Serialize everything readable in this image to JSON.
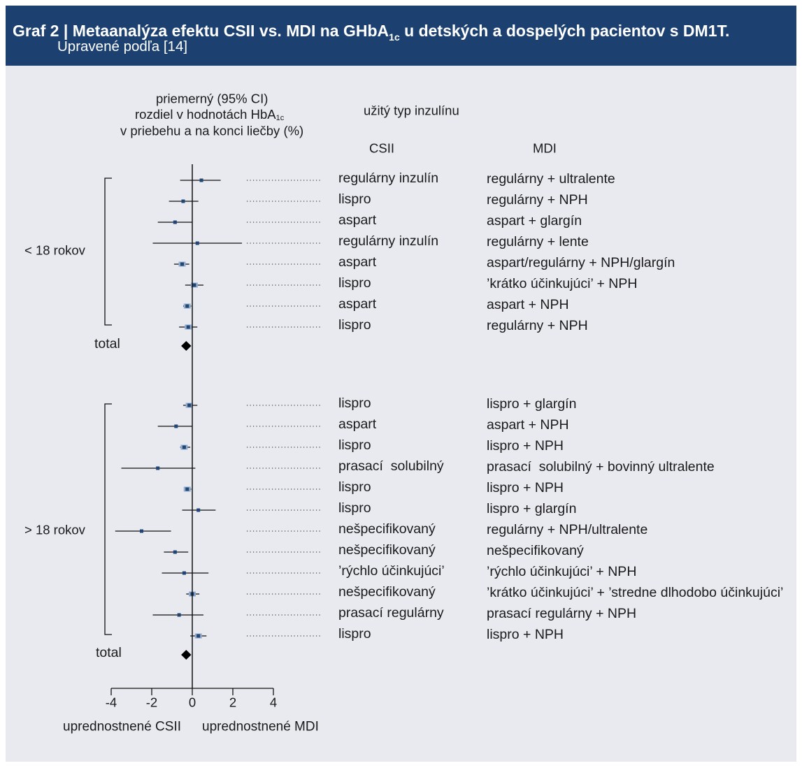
{
  "header": {
    "title_main": "Graf 2 | Metaanalýza efektu CSII vs. MDI na GHbA",
    "title_sub": "1c",
    "title_end": " u detských a dospelých pacientov s DM1T.",
    "subtitle": "Upravené podľa [14]"
  },
  "colors": {
    "header_bg": "#1c4171",
    "panel_bg": "#e8eaf0",
    "box_dark": "#1f4677",
    "box_light": "#93abcb"
  },
  "chart_data": {
    "type": "scatter",
    "col_header": {
      "effect_line1": "priemerný (95% CI)",
      "effect_line2": "rozdiel v hodnotách HbA",
      "effect_line2_sub": "1c",
      "effect_line3": "v priebehu a na konci liečby (%)",
      "insulin_type": "užitý typ inzulínu",
      "csii": "CSII",
      "mdi": "MDI"
    },
    "xlim": [
      -4,
      4
    ],
    "xticks": [
      -4,
      -2,
      0,
      2,
      4
    ],
    "xlabel_left": "uprednostnené CSII",
    "xlabel_right": "uprednostnené MDI",
    "groups": [
      {
        "label": "< 18 rokov",
        "total_label": "total",
        "total": {
          "mean": -0.3,
          "ci": [
            -0.55,
            -0.05
          ]
        },
        "rows": [
          {
            "csii": "regulárny inzulín",
            "mdi": "regulárny + ultralente",
            "mean": 0.45,
            "ci": [
              -0.6,
              1.4
            ],
            "weight": 1
          },
          {
            "csii": "lispro",
            "mdi": "regulárny + NPH",
            "mean": -0.45,
            "ci": [
              -1.15,
              0.3
            ],
            "weight": 1
          },
          {
            "csii": "aspart",
            "mdi": "aspart + glargín",
            "mean": -0.85,
            "ci": [
              -1.7,
              0.0
            ],
            "weight": 1
          },
          {
            "csii": "regulárny inzulín",
            "mdi": "regulárny + lente",
            "mean": 0.25,
            "ci": [
              -1.95,
              2.45
            ],
            "weight": 1
          },
          {
            "csii": "aspart",
            "mdi": "aspart/regulárny + NPH/glargín",
            "mean": -0.5,
            "ci": [
              -0.9,
              -0.15
            ],
            "weight": 3
          },
          {
            "csii": "lispro",
            "mdi": "’krátko účinkujúci’ + NPH",
            "mean": 0.1,
            "ci": [
              -0.35,
              0.55
            ],
            "weight": 3
          },
          {
            "csii": "aspart",
            "mdi": "aspart + NPH",
            "mean": -0.25,
            "ci": [
              -0.45,
              -0.05
            ],
            "weight": 3
          },
          {
            "csii": "lispro",
            "mdi": "regulárny + NPH",
            "mean": -0.2,
            "ci": [
              -0.65,
              0.25
            ],
            "weight": 3
          }
        ]
      },
      {
        "label": "> 18 rokov",
        "total_label": "total",
        "total": {
          "mean": -0.3,
          "ci": [
            -0.55,
            -0.05
          ]
        },
        "rows": [
          {
            "csii": "lispro",
            "mdi": "lispro + glargín",
            "mean": -0.15,
            "ci": [
              -0.45,
              0.25
            ],
            "weight": 3
          },
          {
            "csii": "aspart",
            "mdi": "aspart + NPH",
            "mean": -0.8,
            "ci": [
              -1.7,
              0.0
            ],
            "weight": 1
          },
          {
            "csii": "lispro",
            "mdi": "lispro + NPH",
            "mean": -0.4,
            "ci": [
              -0.6,
              -0.1
            ],
            "weight": 3
          },
          {
            "csii": "prasací  solubilný",
            "mdi": "prasací  solubilný + bovinný ultralente",
            "mean": -1.7,
            "ci": [
              -3.5,
              0.15
            ],
            "weight": 1
          },
          {
            "csii": "lispro",
            "mdi": "lispro + NPH",
            "mean": -0.25,
            "ci": [
              -0.4,
              -0.05
            ],
            "weight": 3
          },
          {
            "csii": "lispro",
            "mdi": "lispro + glargín",
            "mean": 0.3,
            "ci": [
              -0.5,
              1.15
            ],
            "weight": 1
          },
          {
            "csii": "nešpecifikovaný",
            "mdi": "regulárny + NPH/ultralente",
            "mean": -2.5,
            "ci": [
              -3.8,
              -1.05
            ],
            "weight": 1
          },
          {
            "csii": "nešpecifikovaný",
            "mdi": "nešpecifikovaný",
            "mean": -0.85,
            "ci": [
              -1.4,
              -0.2
            ],
            "weight": 1
          },
          {
            "csii": "’rýchlo účinkujúci’",
            "mdi": "’rýchlo účinkujúci’ + NPH",
            "mean": -0.4,
            "ci": [
              -1.5,
              0.8
            ],
            "weight": 1
          },
          {
            "csii": "nešpecifikovaný",
            "mdi": "’krátko účinkujúci’ + ’stredne dlhodobo účinkujúci’",
            "mean": 0.0,
            "ci": [
              -0.3,
              0.35
            ],
            "weight": 3
          },
          {
            "csii": "prasací regulárny",
            "mdi": "prasací regulárny + NPH",
            "mean": -0.65,
            "ci": [
              -1.95,
              0.55
            ],
            "weight": 1
          },
          {
            "csii": "lispro",
            "mdi": "lispro + NPH",
            "mean": 0.3,
            "ci": [
              -0.1,
              0.7
            ],
            "weight": 3
          }
        ]
      }
    ]
  }
}
